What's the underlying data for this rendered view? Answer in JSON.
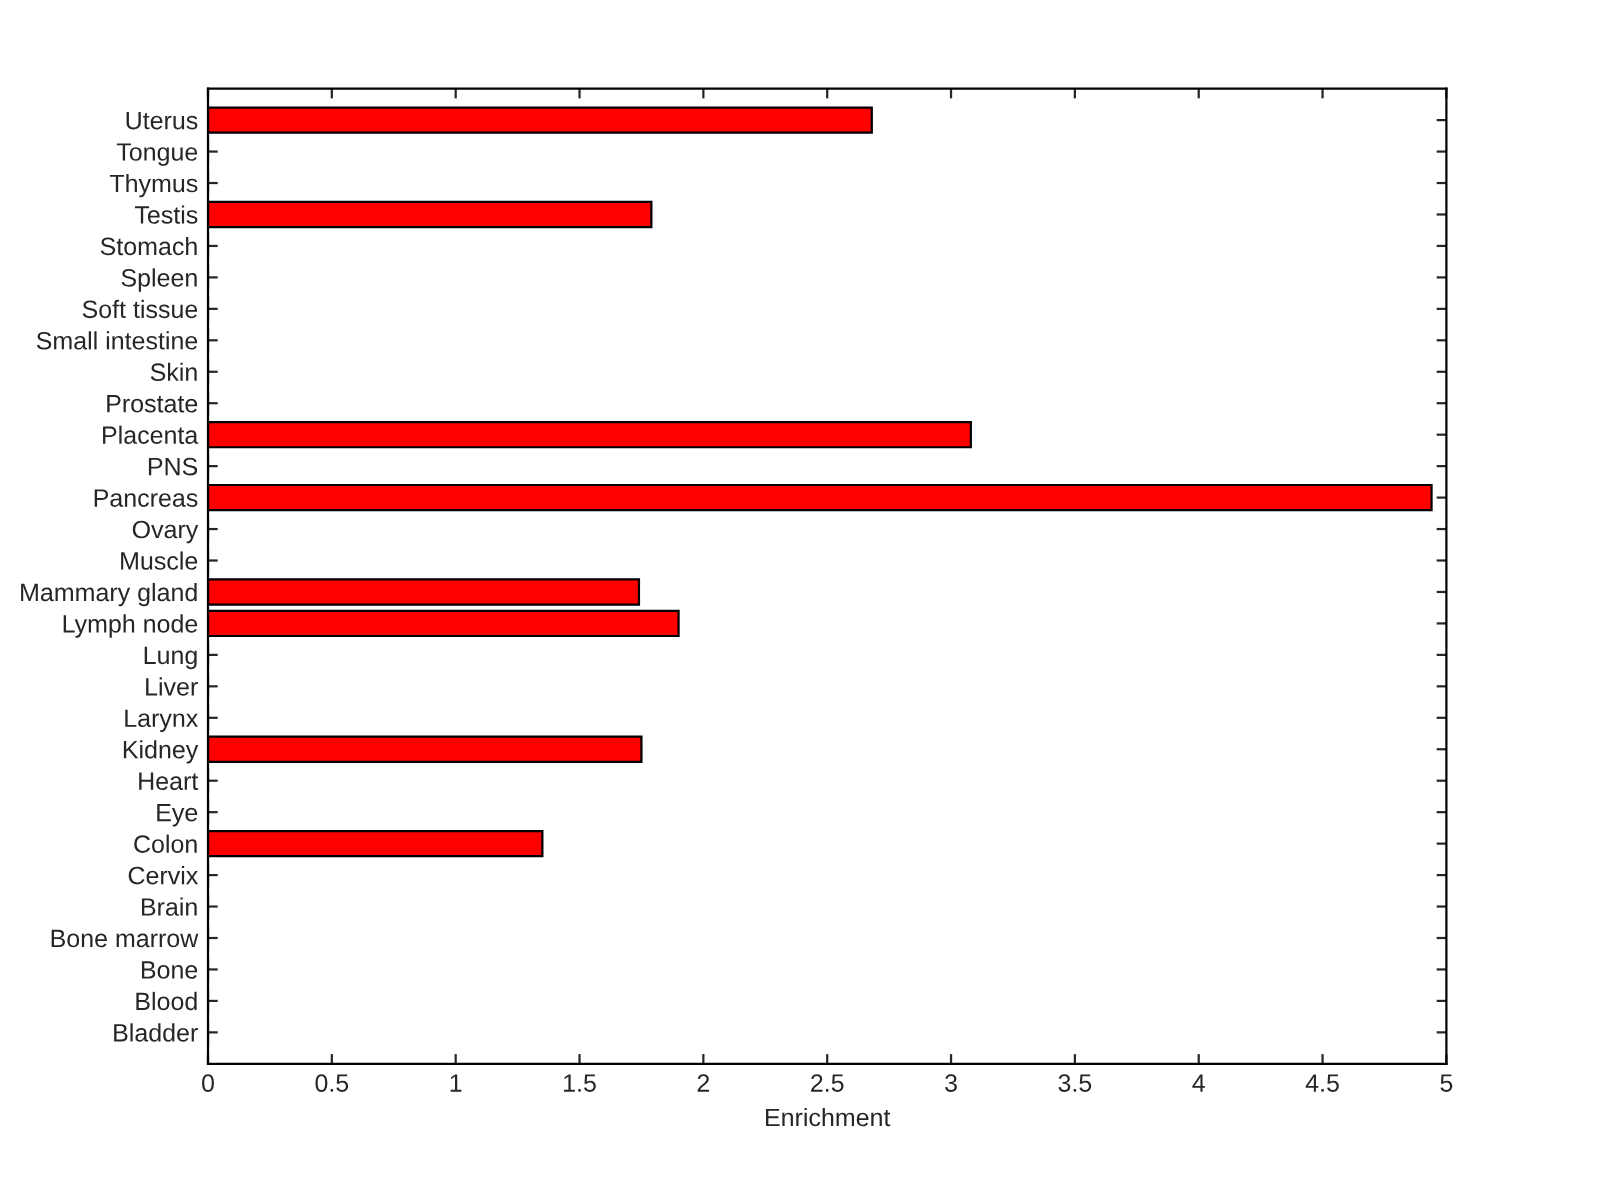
{
  "chart_data": {
    "type": "bar",
    "orientation": "horizontal",
    "xlabel": "Enrichment",
    "categories": [
      "Uterus",
      "Tongue",
      "Thymus",
      "Testis",
      "Stomach",
      "Spleen",
      "Soft tissue",
      "Small intestine",
      "Skin",
      "Prostate",
      "Placenta",
      "PNS",
      "Pancreas",
      "Ovary",
      "Muscle",
      "Mammary gland",
      "Lymph node",
      "Lung",
      "Liver",
      "Larynx",
      "Kidney",
      "Heart",
      "Eye",
      "Colon",
      "Cervix",
      "Brain",
      "Bone marrow",
      "Bone",
      "Blood",
      "Bladder"
    ],
    "values": [
      2.68,
      0,
      0,
      1.79,
      0,
      0,
      0,
      0,
      0,
      0,
      3.08,
      0,
      4.94,
      0,
      0,
      1.74,
      1.9,
      0,
      0,
      0,
      1.75,
      0,
      0,
      1.35,
      0,
      0,
      0,
      0,
      0,
      0
    ],
    "color": "#ff0000",
    "xlim": [
      0,
      5
    ],
    "xticks": [
      0,
      0.5,
      1,
      1.5,
      2,
      2.5,
      3,
      3.5,
      4,
      4.5,
      5
    ],
    "grid": false,
    "legend": false
  }
}
